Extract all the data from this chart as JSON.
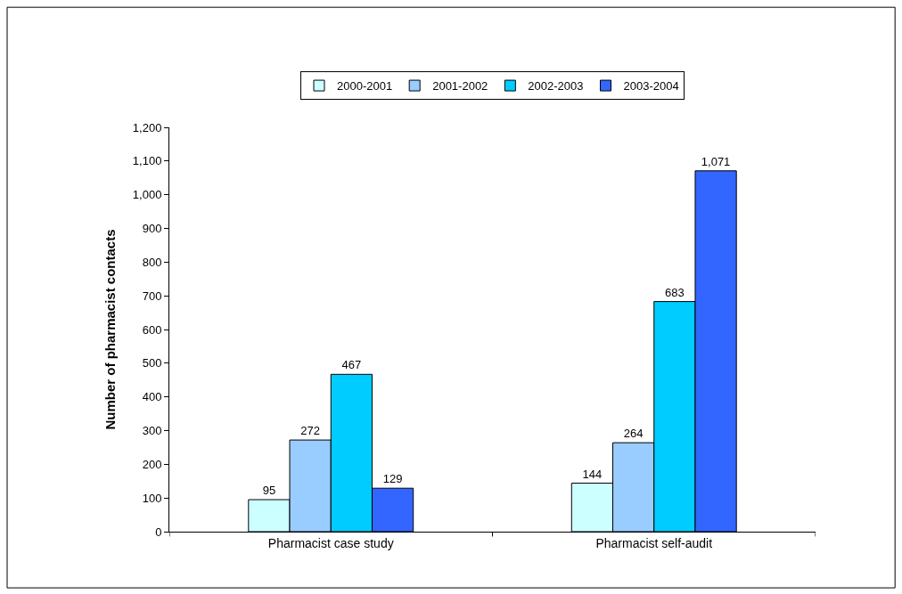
{
  "chart_data": {
    "type": "bar",
    "ylabel": "Number of pharmacist contacts",
    "categories": [
      "Pharmacist case study",
      "Pharmacist self-audit"
    ],
    "series": [
      {
        "name": "2000-2001",
        "color": "#ccffff",
        "values": [
          95,
          144
        ],
        "value_labels": [
          "95",
          "144"
        ]
      },
      {
        "name": "2001-2002",
        "color": "#99ccff",
        "values": [
          272,
          264
        ],
        "value_labels": [
          "272",
          "264"
        ]
      },
      {
        "name": "2002-2003",
        "color": "#00ccff",
        "values": [
          467,
          683
        ],
        "value_labels": [
          "467",
          "683"
        ]
      },
      {
        "name": "2003-2004",
        "color": "#3366ff",
        "values": [
          129,
          1071
        ],
        "value_labels": [
          "129",
          "1,071"
        ]
      }
    ],
    "ylim": [
      0,
      1200
    ],
    "yticks": [
      0,
      100,
      200,
      300,
      400,
      500,
      600,
      700,
      800,
      900,
      {
        "value": 1000,
        "label": "1,000"
      },
      {
        "value": 1100,
        "label": "1,100"
      },
      {
        "value": 1200,
        "label": "1,200"
      }
    ],
    "legend": "top"
  }
}
